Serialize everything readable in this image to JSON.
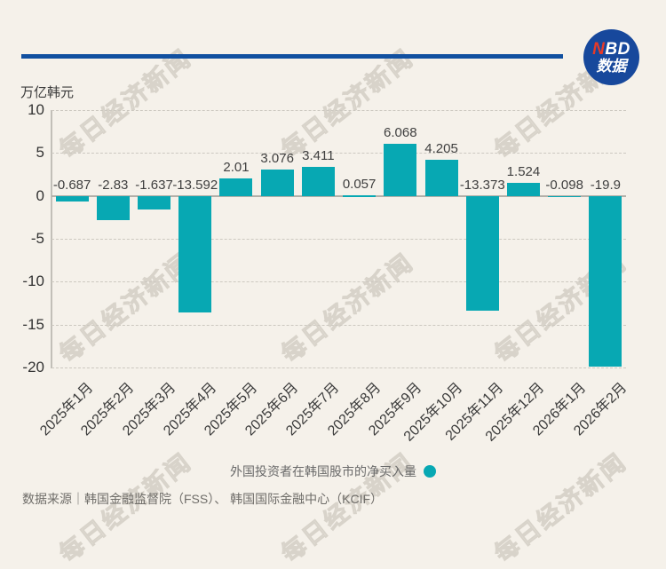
{
  "logo": {
    "n": "N",
    "bd": "BD",
    "subtitle": "数据"
  },
  "chart_data": {
    "type": "bar",
    "title": "",
    "unit_label": "万亿韩元",
    "categories": [
      "2025年1月",
      "2025年2月",
      "2025年3月",
      "2025年4月",
      "2025年5月",
      "2025年6月",
      "2025年7月",
      "2025年8月",
      "2025年9月",
      "2025年10月",
      "2025年11月",
      "2025年12月",
      "2026年1月",
      "2026年2月"
    ],
    "values": [
      -0.687,
      -2.83,
      -1.637,
      -13.592,
      2.01,
      3.076,
      3.411,
      0.057,
      6.068,
      4.205,
      -13.373,
      1.524,
      -0.098,
      -19.9
    ],
    "value_labels": [
      "-0.687",
      "-2.83",
      "-1.637",
      "-13.592",
      "2.01",
      "3.076",
      "3.411",
      "0.057",
      "6.068",
      "4.205",
      "-13.373",
      "1.524",
      "-0.098",
      "-19.9"
    ],
    "y_ticks": [
      10,
      5,
      0,
      -5,
      -10,
      -15,
      -20
    ],
    "ylim": [
      -20,
      10
    ],
    "ylabel": "万亿韩元",
    "xlabel": "",
    "grid": "dashed-horizontal",
    "bar_color": "#07a8b3",
    "legend_position": "bottom-center"
  },
  "legend": {
    "label": "外国投资者在韩国股市的净买入量"
  },
  "source": {
    "text": "数据来源｜韩国金融监督院（FSS）、 韩国国际金融中心（KCIF）"
  },
  "watermark": {
    "text": "每日经济新闻"
  },
  "colors": {
    "accent_teal": "#07a8b3",
    "brand_blue": "#17489c",
    "rule_blue": "#1150a0",
    "logo_red": "#e83a28"
  }
}
